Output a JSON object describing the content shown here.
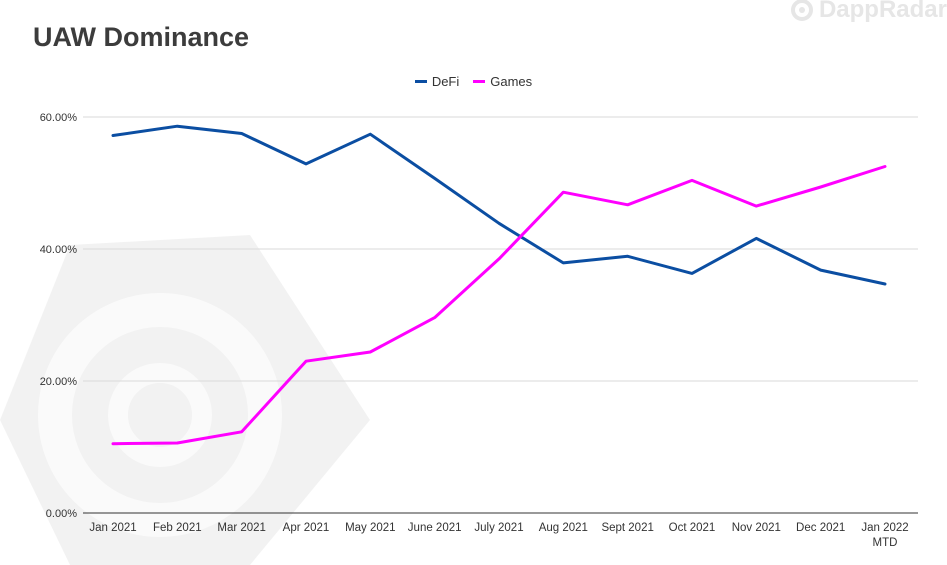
{
  "header": {
    "title": "UAW Dominance",
    "brand": "DappRadar"
  },
  "chart_data": {
    "type": "line",
    "title": "UAW Dominance",
    "xlabel": "",
    "ylabel": "",
    "ylim": [
      0,
      60
    ],
    "yticks": [
      0,
      20,
      40,
      60
    ],
    "ytick_labels": [
      "0.00%",
      "20.00%",
      "40.00%",
      "60.00%"
    ],
    "grid": true,
    "legend_position": "top-center",
    "categories": [
      "Jan 2021",
      "Feb 2021",
      "Mar 2021",
      "Apr 2021",
      "May 2021",
      "June 2021",
      "July 2021",
      "Aug 2021",
      "Sept 2021",
      "Oct 2021",
      "Nov 2021",
      "Dec 2021",
      "Jan 2022 MTD"
    ],
    "series": [
      {
        "name": "DeFi",
        "color": "#0b4ea2",
        "values": [
          57.2,
          58.6,
          57.5,
          52.9,
          57.4,
          50.7,
          43.9,
          37.9,
          38.9,
          36.3,
          41.6,
          36.8,
          34.7
        ]
      },
      {
        "name": "Games",
        "color": "#ff00ff",
        "values": [
          10.5,
          10.6,
          12.3,
          23.0,
          24.4,
          29.6,
          38.5,
          48.6,
          46.7,
          50.4,
          46.5,
          49.4,
          52.5
        ]
      }
    ]
  }
}
